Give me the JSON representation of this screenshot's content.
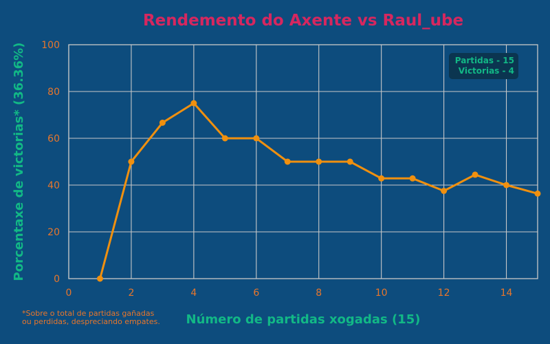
{
  "colors": {
    "background": "#0d4c7d",
    "grid": "#c9c9c9",
    "line": "#f0900f",
    "title": "#d6275f",
    "axis_label": "#12b886",
    "tick": "#e8762b",
    "legend_text": "#12b886",
    "legend_box": "#0b3550",
    "footnote": "#e8762b"
  },
  "chart_data": {
    "type": "line",
    "title": "Rendemento do Axente vs Raul_ube",
    "xlabel": "Número de partidas xogadas (15)",
    "ylabel": "Porcentaxe de victorias* (36.36%)",
    "xlim": [
      0,
      15
    ],
    "ylim": [
      0,
      100
    ],
    "x_ticks": [
      0,
      2,
      4,
      6,
      8,
      10,
      12,
      14
    ],
    "y_ticks": [
      0,
      20,
      40,
      60,
      80,
      100
    ],
    "grid": true,
    "legend_position": "top-right",
    "series": [
      {
        "x": [
          1,
          2,
          3,
          4,
          5,
          6,
          7,
          8,
          9,
          10,
          11,
          12,
          13,
          14,
          15
        ],
        "values": [
          0,
          50,
          66.67,
          75,
          60,
          60,
          50,
          50,
          50,
          42.86,
          42.86,
          37.5,
          44.44,
          40,
          36.36
        ]
      }
    ],
    "legend_lines": [
      "Partidas - 15",
      "Victorias - 4"
    ],
    "footnote_lines": [
      "*Sobre o total de partidas gañadas",
      "ou perdidas, despreciando empates."
    ]
  }
}
